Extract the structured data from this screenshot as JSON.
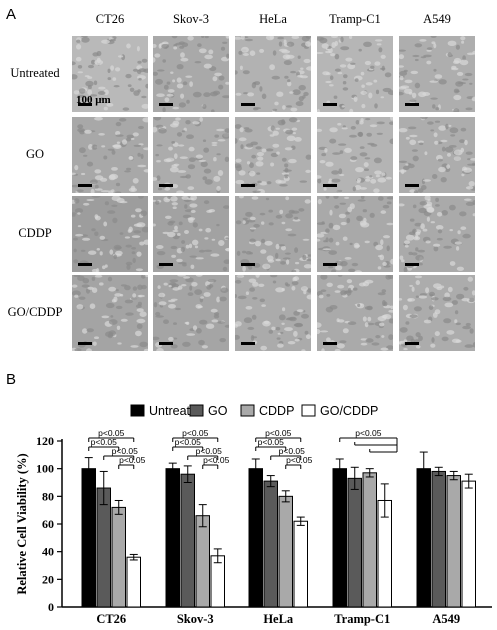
{
  "panel_a": {
    "label": "A",
    "columns": [
      "CT26",
      "Skov-3",
      "HeLa",
      "Tramp-C1",
      "A549"
    ],
    "rows": [
      "Untreated",
      "GO",
      "CDDP",
      "GO/CDDP"
    ],
    "scale_text": "100 μm"
  },
  "chart_data": {
    "panel_label": "B",
    "type": "bar",
    "title": "",
    "ylabel": "Relative Cell Viability (%)",
    "xlabel": "",
    "ylim": [
      0,
      120
    ],
    "yticks": [
      0,
      20,
      40,
      60,
      80,
      100,
      120
    ],
    "categories": [
      "CT26",
      "Skov-3",
      "HeLa",
      "Tramp-C1",
      "A549"
    ],
    "legend_position": "top",
    "series": [
      {
        "name": "Untreated",
        "color": "#000000",
        "values": [
          100,
          100,
          100,
          100,
          100
        ],
        "errors": [
          8,
          4,
          7,
          7,
          12
        ]
      },
      {
        "name": "GO",
        "color": "#5a5a5a",
        "values": [
          86,
          96,
          91,
          93,
          98
        ],
        "errors": [
          12,
          6,
          4,
          8,
          3
        ]
      },
      {
        "name": "CDDP",
        "color": "#a9a9a9",
        "values": [
          72,
          66,
          80,
          97,
          95
        ],
        "errors": [
          5,
          8,
          4,
          3,
          3
        ]
      },
      {
        "name": "GO/CDDP",
        "color": "#ffffff",
        "values": [
          36,
          37,
          62,
          77,
          91
        ],
        "errors": [
          2,
          5,
          3,
          12,
          5
        ]
      }
    ],
    "annotations": {
      "CT26": [
        "p<0.05",
        "p<0.05",
        "p<0.05",
        "p<0.05"
      ],
      "Skov-3": [
        "p<0.05",
        "p<0.05",
        "p<0.05",
        "p<0.05"
      ],
      "HeLa": [
        "p<0.05",
        "p<0.05",
        "p<0.05",
        "p<0.05"
      ],
      "Tramp-C1": [
        "p<0.05"
      ]
    }
  }
}
